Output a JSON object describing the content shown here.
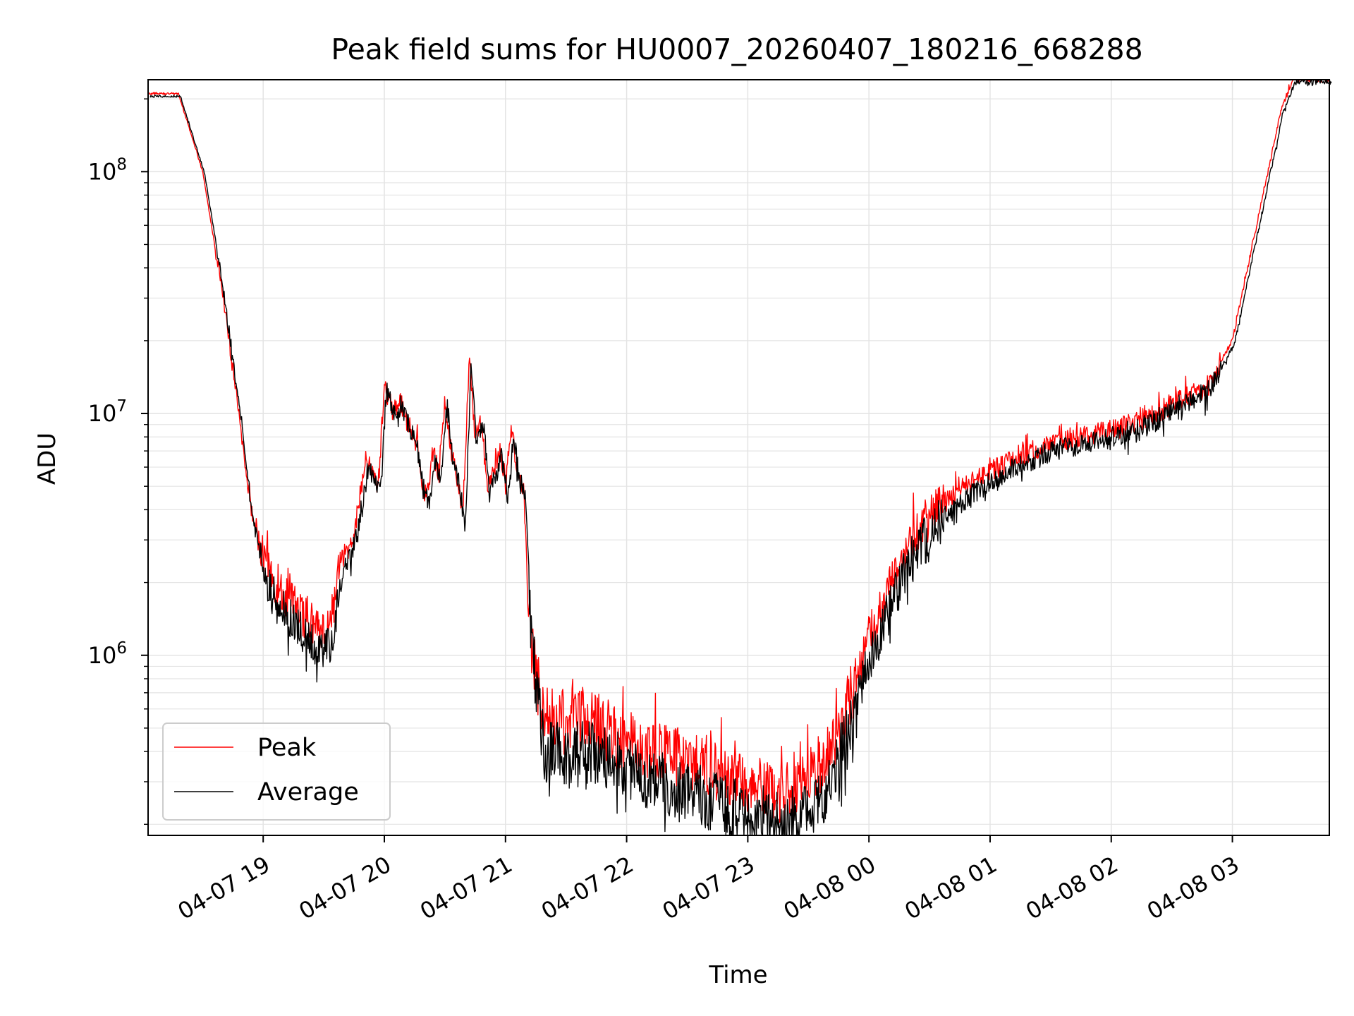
{
  "chart_data": {
    "type": "line",
    "title": "Peak field sums for HU0007_20260407_180216_668288",
    "xlabel": "Time",
    "ylabel": "ADU",
    "yscale": "log",
    "xlim_hours": [
      18.05,
      27.8
    ],
    "ylim": [
      180000,
      240000000
    ],
    "x_ticks": [
      {
        "hour": 19,
        "label": "04-07 19"
      },
      {
        "hour": 20,
        "label": "04-07 20"
      },
      {
        "hour": 21,
        "label": "04-07 21"
      },
      {
        "hour": 22,
        "label": "04-07 22"
      },
      {
        "hour": 23,
        "label": "04-07 23"
      },
      {
        "hour": 24,
        "label": "04-08 00"
      },
      {
        "hour": 25,
        "label": "04-08 01"
      },
      {
        "hour": 26,
        "label": "04-08 02"
      },
      {
        "hour": 27,
        "label": "04-08 03"
      }
    ],
    "y_ticks": [
      {
        "value": 1000000,
        "base": "10",
        "exp": "6"
      },
      {
        "value": 10000000,
        "base": "10",
        "exp": "7"
      },
      {
        "value": 100000000,
        "base": "10",
        "exp": "8"
      }
    ],
    "grid": true,
    "legend_position": "lower-left",
    "series": [
      {
        "name": "Peak",
        "color": "#ff0000",
        "noise": "peak",
        "points": [
          [
            18.05,
            210000000
          ],
          [
            18.3,
            210000000
          ],
          [
            18.5,
            100000000
          ],
          [
            18.65,
            35000000
          ],
          [
            18.8,
            10000000
          ],
          [
            18.9,
            4000000
          ],
          [
            19.0,
            2500000
          ],
          [
            19.15,
            1800000
          ],
          [
            19.3,
            1500000
          ],
          [
            19.45,
            1250000
          ],
          [
            19.55,
            1300000
          ],
          [
            19.62,
            2200000
          ],
          [
            19.75,
            3200000
          ],
          [
            19.85,
            6500000
          ],
          [
            19.95,
            5000000
          ],
          [
            20.0,
            13000000
          ],
          [
            20.08,
            10000000
          ],
          [
            20.12,
            11500000
          ],
          [
            20.2,
            9000000
          ],
          [
            20.28,
            7000000
          ],
          [
            20.3,
            5500000
          ],
          [
            20.35,
            4500000
          ],
          [
            20.4,
            7000000
          ],
          [
            20.45,
            5500000
          ],
          [
            20.5,
            11500000
          ],
          [
            20.55,
            7000000
          ],
          [
            20.6,
            5500000
          ],
          [
            20.65,
            4000000
          ],
          [
            20.7,
            16500000
          ],
          [
            20.75,
            8000000
          ],
          [
            20.8,
            9500000
          ],
          [
            20.85,
            5000000
          ],
          [
            20.95,
            7000000
          ],
          [
            21.0,
            5000000
          ],
          [
            21.05,
            8800000
          ],
          [
            21.1,
            5500000
          ],
          [
            21.15,
            5000000
          ],
          [
            21.2,
            1300000
          ],
          [
            21.3,
            560000
          ],
          [
            21.5,
            520000
          ],
          [
            21.7,
            560000
          ],
          [
            21.9,
            460000
          ],
          [
            22.1,
            420000
          ],
          [
            22.4,
            380000
          ],
          [
            22.7,
            330000
          ],
          [
            22.9,
            300000
          ],
          [
            23.1,
            280000
          ],
          [
            23.3,
            270000
          ],
          [
            23.5,
            300000
          ],
          [
            23.65,
            380000
          ],
          [
            23.8,
            560000
          ],
          [
            23.95,
            1000000
          ],
          [
            24.1,
            1600000
          ],
          [
            24.25,
            2500000
          ],
          [
            24.4,
            3200000
          ],
          [
            24.6,
            4200000
          ],
          [
            24.8,
            5000000
          ],
          [
            25.0,
            5800000
          ],
          [
            25.2,
            6500000
          ],
          [
            25.5,
            7500000
          ],
          [
            26.0,
            8500000
          ],
          [
            26.3,
            9500000
          ],
          [
            26.5,
            11000000
          ],
          [
            26.8,
            13000000
          ],
          [
            27.0,
            20000000
          ],
          [
            27.2,
            60000000
          ],
          [
            27.4,
            180000000
          ],
          [
            27.5,
            240000000
          ],
          [
            27.8,
            240000000
          ]
        ]
      },
      {
        "name": "Average",
        "color": "#000000",
        "noise": "avg",
        "points": [
          [
            18.05,
            205000000
          ],
          [
            18.3,
            205000000
          ],
          [
            18.5,
            98000000
          ],
          [
            18.65,
            34000000
          ],
          [
            18.8,
            9500000
          ],
          [
            18.9,
            3600000
          ],
          [
            19.0,
            2000000
          ],
          [
            19.15,
            1500000
          ],
          [
            19.3,
            1250000
          ],
          [
            19.45,
            1050000
          ],
          [
            19.55,
            1050000
          ],
          [
            19.62,
            2000000
          ],
          [
            19.75,
            3000000
          ],
          [
            19.85,
            6000000
          ],
          [
            19.95,
            4700000
          ],
          [
            20.0,
            12500000
          ],
          [
            20.08,
            9500000
          ],
          [
            20.12,
            11000000
          ],
          [
            20.2,
            8500000
          ],
          [
            20.28,
            6500000
          ],
          [
            20.3,
            5000000
          ],
          [
            20.35,
            4200000
          ],
          [
            20.4,
            6500000
          ],
          [
            20.45,
            5000000
          ],
          [
            20.5,
            11000000
          ],
          [
            20.55,
            6500000
          ],
          [
            20.6,
            5000000
          ],
          [
            20.65,
            3500000
          ],
          [
            20.7,
            16000000
          ],
          [
            20.75,
            7500000
          ],
          [
            20.8,
            9000000
          ],
          [
            20.85,
            4700000
          ],
          [
            20.95,
            6500000
          ],
          [
            21.0,
            4700000
          ],
          [
            21.05,
            8300000
          ],
          [
            21.1,
            5200000
          ],
          [
            21.15,
            4700000
          ],
          [
            21.2,
            1100000
          ],
          [
            21.3,
            400000
          ],
          [
            21.5,
            390000
          ],
          [
            21.7,
            400000
          ],
          [
            21.9,
            360000
          ],
          [
            22.1,
            320000
          ],
          [
            22.4,
            280000
          ],
          [
            22.7,
            250000
          ],
          [
            22.9,
            230000
          ],
          [
            23.1,
            215000
          ],
          [
            23.3,
            210000
          ],
          [
            23.5,
            225000
          ],
          [
            23.65,
            290000
          ],
          [
            23.8,
            450000
          ],
          [
            23.95,
            850000
          ],
          [
            24.1,
            1300000
          ],
          [
            24.25,
            2100000
          ],
          [
            24.4,
            2800000
          ],
          [
            24.6,
            3700000
          ],
          [
            24.8,
            4500000
          ],
          [
            25.0,
            5300000
          ],
          [
            25.2,
            6000000
          ],
          [
            25.5,
            7000000
          ],
          [
            26.0,
            8000000
          ],
          [
            26.3,
            9000000
          ],
          [
            26.5,
            10500000
          ],
          [
            26.8,
            12500000
          ],
          [
            27.0,
            19500000
          ],
          [
            27.2,
            58000000
          ],
          [
            27.4,
            175000000
          ],
          [
            27.5,
            235000000
          ],
          [
            27.8,
            235000000
          ]
        ]
      }
    ]
  }
}
